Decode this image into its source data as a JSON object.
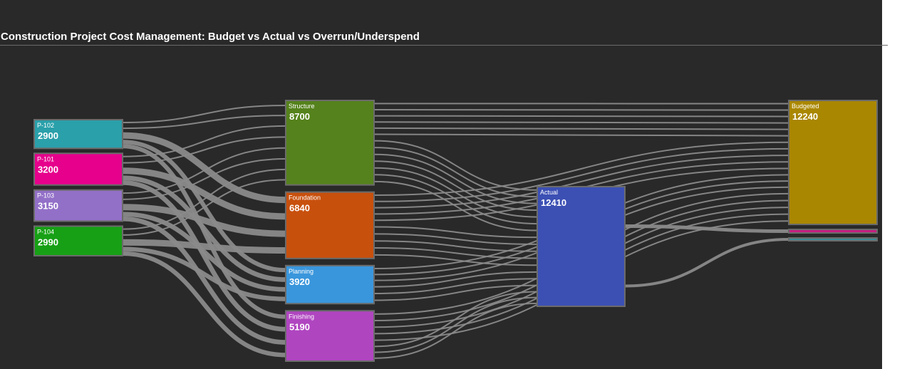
{
  "title": "Construction Project Cost Management: Budget vs Actual vs Overrun/Underspend",
  "chart_data": {
    "type": "sankey",
    "title": "Construction Project Cost Management: Budget vs Actual vs Overrun/Underspend",
    "link_color": "#8a8a8a",
    "node_border_color": "#6b6b6b",
    "columns": [
      [
        {
          "id": "P-102",
          "label": "P-102",
          "value": 2900,
          "color": "#2aa0aa"
        },
        {
          "id": "P-101",
          "label": "P-101",
          "value": 3200,
          "color": "#e6008c"
        },
        {
          "id": "P-103",
          "label": "P-103",
          "value": 3150,
          "color": "#9370c8"
        },
        {
          "id": "P-104",
          "label": "P-104",
          "value": 2990,
          "color": "#17a015"
        }
      ],
      [
        {
          "id": "Structure",
          "label": "Structure",
          "value": 8700,
          "color": "#55821c"
        },
        {
          "id": "Foundation",
          "label": "Foundation",
          "value": 6840,
          "color": "#c8500d"
        },
        {
          "id": "Planning",
          "label": "Planning",
          "value": 3920,
          "color": "#3a96dc"
        },
        {
          "id": "Finishing",
          "label": "Finishing",
          "value": 5190,
          "color": "#b045c0"
        }
      ],
      [
        {
          "id": "Actual",
          "label": "Actual",
          "value": 12410,
          "color": "#3c50b4"
        }
      ],
      [
        {
          "id": "Budgeted",
          "label": "Budgeted",
          "value": 12240,
          "color": "#aa8700"
        },
        {
          "id": "Overrun",
          "label": "",
          "value": 350,
          "color": "#c81e82"
        },
        {
          "id": "Underspend",
          "label": "",
          "value": 180,
          "color": "#3c8c96"
        }
      ]
    ],
    "links": [
      {
        "source": "P-102",
        "target": "Structure",
        "value": 1160
      },
      {
        "source": "P-102",
        "target": "Foundation",
        "value": 870
      },
      {
        "source": "P-102",
        "target": "Planning",
        "value": 435
      },
      {
        "source": "P-102",
        "target": "Finishing",
        "value": 435
      },
      {
        "source": "P-101",
        "target": "Structure",
        "value": 1280
      },
      {
        "source": "P-101",
        "target": "Foundation",
        "value": 960
      },
      {
        "source": "P-101",
        "target": "Planning",
        "value": 480
      },
      {
        "source": "P-101",
        "target": "Finishing",
        "value": 480
      },
      {
        "source": "P-103",
        "target": "Structure",
        "value": 1260
      },
      {
        "source": "P-103",
        "target": "Foundation",
        "value": 945
      },
      {
        "source": "P-103",
        "target": "Planning",
        "value": 470
      },
      {
        "source": "P-103",
        "target": "Finishing",
        "value": 475
      },
      {
        "source": "P-104",
        "target": "Structure",
        "value": 1195
      },
      {
        "source": "P-104",
        "target": "Foundation",
        "value": 895
      },
      {
        "source": "P-104",
        "target": "Planning",
        "value": 450
      },
      {
        "source": "P-104",
        "target": "Finishing",
        "value": 450
      },
      {
        "source": "Structure",
        "target": "Budgeted",
        "value": 3805
      },
      {
        "source": "Structure",
        "target": "Actual",
        "value": 4895
      },
      {
        "source": "Foundation",
        "target": "Budgeted",
        "value": 3230
      },
      {
        "source": "Foundation",
        "target": "Actual",
        "value": 3610
      },
      {
        "source": "Planning",
        "target": "Budgeted",
        "value": 1835
      },
      {
        "source": "Planning",
        "target": "Actual",
        "value": 2085
      },
      {
        "source": "Finishing",
        "target": "Budgeted",
        "value": 3370
      },
      {
        "source": "Finishing",
        "target": "Actual",
        "value": 1820
      },
      {
        "source": "Actual",
        "target": "Overrun",
        "value": 350
      },
      {
        "source": "Actual",
        "target": "Underspend",
        "value": 180
      }
    ]
  }
}
